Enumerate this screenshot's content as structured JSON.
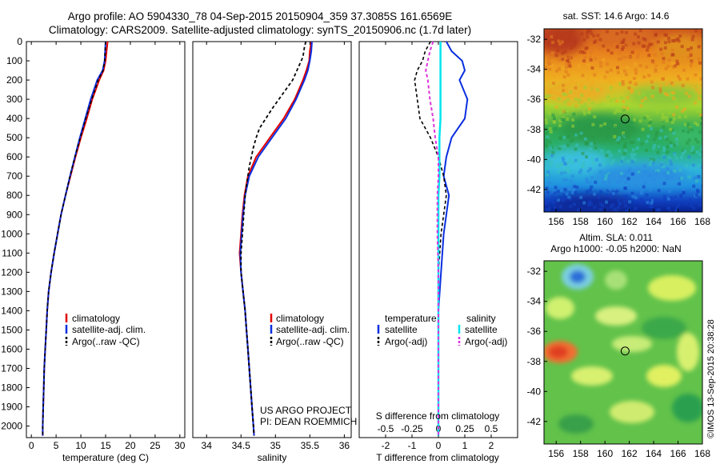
{
  "title": {
    "line1": "Argo profile: AO 5904330_78 04-Sep-2015 20150904_359 37.3085S 161.6569E",
    "line2": "Climatology: CARS2009. Satellite-adjusted climatology: synTS_20150906.nc (1.7d later)"
  },
  "colors": {
    "climatology": "#e00000",
    "satellite": "#0a2ee0",
    "argo": "#000000",
    "salinity_satellite": "#00e5ee",
    "salinity_argo": "#dd33dd"
  },
  "chart_data": [
    {
      "type": "line",
      "name": "temperature-profile",
      "xlabel": "temperature (deg C)",
      "ylabel": "",
      "xlim": [
        -1,
        31
      ],
      "ylim": [
        2060,
        0
      ],
      "xticks": [
        0,
        5,
        10,
        15,
        20,
        25,
        30
      ],
      "yticks": [
        0,
        100,
        200,
        300,
        400,
        500,
        600,
        700,
        800,
        900,
        1000,
        1100,
        1200,
        1300,
        1400,
        1500,
        1600,
        1700,
        1800,
        1900,
        2000
      ],
      "legend": {
        "position": "lower-middle",
        "labels": [
          "climatology",
          "satellite-adj. clim.",
          "Argo(..raw -QC)"
        ]
      },
      "series": [
        {
          "name": "climatology",
          "style": "solid",
          "depth": [
            0,
            100,
            150,
            200,
            300,
            400,
            500,
            600,
            700,
            800,
            900,
            1000,
            1100,
            1200,
            1300,
            1400,
            1500,
            1600,
            1700,
            1800,
            1900,
            2000,
            2050
          ],
          "values": [
            15.4,
            15.0,
            14.6,
            13.7,
            12.3,
            11.2,
            10.0,
            8.9,
            7.9,
            6.9,
            6.0,
            5.3,
            4.6,
            4.0,
            3.5,
            3.2,
            3.0,
            2.8,
            2.6,
            2.5,
            2.4,
            2.3,
            2.3
          ]
        },
        {
          "name": "satellite-adj. clim.",
          "style": "solid",
          "depth": [
            0,
            100,
            150,
            200,
            300,
            400,
            500,
            600,
            700,
            800,
            900,
            1000,
            1100,
            1200,
            1300,
            1400,
            1500,
            1600,
            1700,
            1800,
            1900,
            2000,
            2050
          ],
          "values": [
            15.0,
            14.8,
            14.4,
            13.3,
            12.0,
            10.9,
            9.8,
            8.8,
            7.8,
            6.9,
            6.0,
            5.3,
            4.6,
            4.0,
            3.5,
            3.2,
            3.0,
            2.8,
            2.6,
            2.5,
            2.4,
            2.3,
            2.3
          ]
        },
        {
          "name": "Argo(..raw -QC)",
          "style": "dashed",
          "depth": [
            0,
            100,
            150,
            200,
            300,
            400,
            500,
            600,
            700,
            800,
            900,
            1000,
            1100,
            1200,
            1300,
            1400,
            1500,
            1600,
            1700,
            1800,
            1900,
            2000,
            2050
          ],
          "values": [
            15.0,
            14.8,
            14.5,
            13.5,
            12.2,
            11.0,
            9.9,
            8.8,
            7.8,
            6.9,
            6.0,
            5.3,
            4.6,
            4.0,
            3.5,
            3.2,
            3.0,
            2.8,
            2.6,
            2.5,
            2.4,
            2.3,
            2.3
          ]
        }
      ]
    },
    {
      "type": "line",
      "name": "salinity-profile",
      "xlabel": "salinity",
      "ylabel": "",
      "xlim": [
        33.8,
        36.1
      ],
      "ylim": [
        2060,
        0
      ],
      "xticks": [
        34,
        34.5,
        35,
        35.5,
        36
      ],
      "legend": {
        "position": "lower-middle",
        "labels": [
          "climatology",
          "satellite-adj. clim.",
          "Argo(..raw -QC)"
        ]
      },
      "annotation": [
        "US ARGO PROJECT",
        "PI: DEAN ROEMMICH"
      ],
      "series": [
        {
          "name": "climatology",
          "style": "solid",
          "depth": [
            0,
            50,
            100,
            150,
            200,
            300,
            400,
            500,
            600,
            700,
            800,
            900,
            1000,
            1100,
            1200,
            1300,
            1400,
            1500,
            1600,
            1700,
            1800,
            1900,
            2000,
            2050
          ],
          "values": [
            35.52,
            35.5,
            35.49,
            35.45,
            35.4,
            35.28,
            35.12,
            34.92,
            34.72,
            34.6,
            34.55,
            34.52,
            34.5,
            34.48,
            34.5,
            34.53,
            34.56,
            34.58,
            34.6,
            34.62,
            34.64,
            34.66,
            34.68,
            34.69
          ]
        },
        {
          "name": "satellite-adj. clim.",
          "style": "solid",
          "depth": [
            0,
            50,
            100,
            150,
            200,
            300,
            400,
            500,
            600,
            700,
            800,
            900,
            1000,
            1100,
            1200,
            1300,
            1400,
            1500,
            1600,
            1700,
            1800,
            1900,
            2000,
            2050
          ],
          "values": [
            35.53,
            35.52,
            35.5,
            35.47,
            35.42,
            35.3,
            35.15,
            34.95,
            34.75,
            34.62,
            34.56,
            34.53,
            34.51,
            34.49,
            34.5,
            34.53,
            34.56,
            34.58,
            34.6,
            34.62,
            34.64,
            34.66,
            34.68,
            34.69
          ]
        },
        {
          "name": "Argo(..raw -QC)",
          "style": "dashed",
          "depth": [
            0,
            30,
            80,
            120,
            160,
            200,
            250,
            300,
            350,
            400,
            450,
            500,
            550,
            600,
            650,
            700,
            750,
            800,
            850,
            900,
            1000,
            1100,
            1200,
            1300,
            1400,
            1500,
            1600,
            1700,
            1800,
            1900,
            2000,
            2050
          ],
          "values": [
            35.44,
            35.42,
            35.4,
            35.35,
            35.3,
            35.25,
            35.15,
            35.05,
            34.95,
            34.86,
            34.77,
            34.72,
            34.68,
            34.65,
            34.62,
            34.6,
            34.58,
            34.56,
            34.55,
            34.54,
            34.52,
            34.5,
            34.5,
            34.53,
            34.56,
            34.58,
            34.6,
            34.62,
            34.64,
            34.66,
            34.68,
            34.69
          ]
        }
      ]
    },
    {
      "type": "line",
      "name": "difference-from-climatology",
      "xlabel": "T difference from climatology",
      "xlabel_top": "S difference from climatology",
      "xlim": [
        -3,
        3
      ],
      "ylim": [
        2060,
        0
      ],
      "xticks": [
        -2,
        -1,
        0,
        1,
        2
      ],
      "xticks_top": [
        -0.5,
        -0.25,
        0,
        0.25,
        0.5
      ],
      "legend": {
        "position": "lower-middle",
        "temperature_header": "temperature",
        "salinity_header": "salinity",
        "labels": [
          "satellite",
          "Argo(-adj)",
          "satellite",
          "Argo(-adj)"
        ]
      },
      "series": [
        {
          "name": "temperature satellite",
          "style": "solid",
          "depth": [
            0,
            50,
            100,
            150,
            200,
            300,
            400,
            500,
            600,
            700,
            800,
            900,
            1000,
            1200,
            1400,
            1600,
            1800,
            2000,
            2050
          ],
          "values": [
            0.3,
            0.5,
            0.9,
            1.0,
            0.8,
            1.1,
            1.0,
            0.5,
            0.3,
            0.2,
            0.4,
            0.3,
            0.2,
            0.1,
            0.0,
            0.0,
            0.0,
            0.0,
            0.0
          ]
        },
        {
          "name": "temperature Argo(-adj)",
          "style": "dashed",
          "depth": [
            0,
            50,
            100,
            150,
            200,
            300,
            400,
            500,
            600,
            700,
            800,
            900,
            1000,
            1200,
            1400,
            1600,
            1800,
            2000,
            2050
          ],
          "values": [
            -0.3,
            -0.5,
            -0.6,
            -0.8,
            -0.9,
            -0.8,
            -0.7,
            -0.3,
            0.0,
            0.2,
            0.3,
            0.2,
            0.1,
            0.0,
            0.0,
            0.0,
            0.0,
            0.0,
            0.0
          ]
        },
        {
          "name": "salinity satellite",
          "style": "solid",
          "depth": [
            0,
            100,
            200,
            300,
            400,
            500,
            600,
            700,
            800,
            900,
            1000,
            1200,
            1400,
            1600,
            1800,
            2000,
            2050
          ],
          "values": [
            0.02,
            0.02,
            0.02,
            0.02,
            0.02,
            0.01,
            0.01,
            0.01,
            0.0,
            0.0,
            0.0,
            0.0,
            0.0,
            0.0,
            0.0,
            0.0,
            0.0
          ]
        },
        {
          "name": "salinity Argo(-adj)",
          "style": "dashed",
          "depth": [
            0,
            50,
            100,
            150,
            200,
            300,
            400,
            500,
            600,
            700,
            800,
            900,
            1000,
            1200,
            1400,
            1600,
            1800,
            2000,
            2050
          ],
          "values": [
            -0.05,
            -0.08,
            -0.1,
            -0.12,
            -0.1,
            -0.08,
            -0.05,
            -0.03,
            0.0,
            0.0,
            -0.01,
            -0.01,
            -0.01,
            0.0,
            0.0,
            0.0,
            0.0,
            0.0,
            0.0
          ]
        }
      ]
    },
    {
      "type": "heatmap",
      "name": "sst-map",
      "title": "sat. SST: 14.6  Argo: 14.6",
      "xlim": [
        155,
        168
      ],
      "ylim": [
        -43.5,
        -31.3
      ],
      "xticks": [
        156,
        158,
        160,
        162,
        164,
        166,
        168
      ],
      "yticks": [
        -32,
        -34,
        -36,
        -38,
        -40,
        -42
      ],
      "marker": {
        "lon": 161.6569,
        "lat": -37.3085
      }
    },
    {
      "type": "heatmap",
      "name": "sla-map",
      "title_line1": "Altim. SLA: 0.011",
      "title_line2": "Argo h1000: -0.05 h2000: NaN",
      "xlim": [
        155,
        168
      ],
      "ylim": [
        -43.5,
        -31.3
      ],
      "xticks": [
        156,
        158,
        160,
        162,
        164,
        166,
        168
      ],
      "yticks": [
        -32,
        -34,
        -36,
        -38,
        -40,
        -42
      ],
      "marker": {
        "lon": 161.6569,
        "lat": -37.3085
      }
    }
  ],
  "credit": "©IMOS 13-Sep-2015 20:38:28"
}
